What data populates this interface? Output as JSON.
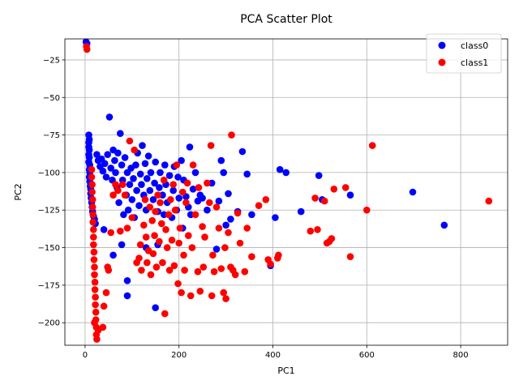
{
  "chart_data": {
    "type": "scatter",
    "title": "PCA Scatter Plot",
    "xlabel": "PC1",
    "ylabel": "PC2",
    "xlim": [
      -43,
      900
    ],
    "ylim": [
      -215,
      -11
    ],
    "xticks": [
      0,
      200,
      400,
      600,
      800
    ],
    "yticks": [
      -200,
      -175,
      -150,
      -125,
      -100,
      -75,
      -50,
      -25
    ],
    "grid": true,
    "legend_position": "top-right",
    "series": [
      {
        "name": "class0",
        "color": "#0000ff",
        "points": [
          [
            2,
            -13
          ],
          [
            4,
            -14
          ],
          [
            8,
            -75
          ],
          [
            9,
            -78
          ],
          [
            8,
            -80
          ],
          [
            8,
            -83
          ],
          [
            9,
            -85
          ],
          [
            8,
            -88
          ],
          [
            9,
            -90
          ],
          [
            8,
            -93
          ],
          [
            10,
            -95
          ],
          [
            9,
            -98
          ],
          [
            10,
            -100
          ],
          [
            9,
            -103
          ],
          [
            10,
            -106
          ],
          [
            11,
            -109
          ],
          [
            12,
            -111
          ],
          [
            12,
            -114
          ],
          [
            13,
            -117
          ],
          [
            14,
            -120
          ],
          [
            15,
            -123
          ],
          [
            16,
            -126
          ],
          [
            18,
            -129
          ],
          [
            20,
            -131
          ],
          [
            22,
            -134
          ],
          [
            25,
            -88
          ],
          [
            28,
            -92
          ],
          [
            32,
            -96
          ],
          [
            35,
            -91
          ],
          [
            38,
            -99
          ],
          [
            42,
            -94
          ],
          [
            45,
            -103
          ],
          [
            48,
            -88
          ],
          [
            52,
            -63
          ],
          [
            55,
            -97
          ],
          [
            58,
            -105
          ],
          [
            60,
            -85
          ],
          [
            63,
            -92
          ],
          [
            65,
            -100
          ],
          [
            68,
            -110
          ],
          [
            70,
            -87
          ],
          [
            72,
            -120
          ],
          [
            75,
            -74
          ],
          [
            78,
            -95
          ],
          [
            80,
            -105
          ],
          [
            82,
            -128
          ],
          [
            85,
            -90
          ],
          [
            88,
            -115
          ],
          [
            90,
            -100
          ],
          [
            92,
            -125
          ],
          [
            95,
            -108
          ],
          [
            98,
            -97
          ],
          [
            100,
            -118
          ],
          [
            103,
            -104
          ],
          [
            105,
            -130
          ],
          [
            108,
            -95
          ],
          [
            110,
            -112
          ],
          [
            112,
            -87
          ],
          [
            115,
            -122
          ],
          [
            118,
            -101
          ],
          [
            120,
            -108
          ],
          [
            122,
            -82
          ],
          [
            125,
            -115
          ],
          [
            128,
            -94
          ],
          [
            130,
            -125
          ],
          [
            132,
            -104
          ],
          [
            135,
            -89
          ],
          [
            138,
            -112
          ],
          [
            140,
            -100
          ],
          [
            145,
            -118
          ],
          [
            148,
            -107
          ],
          [
            150,
            -93
          ],
          [
            155,
            -126
          ],
          [
            158,
            -110
          ],
          [
            160,
            -100
          ],
          [
            165,
            -115
          ],
          [
            168,
            -128
          ],
          [
            170,
            -95
          ],
          [
            172,
            -108
          ],
          [
            175,
            -120
          ],
          [
            180,
            -102
          ],
          [
            185,
            -130
          ],
          [
            188,
            -112
          ],
          [
            190,
            -96
          ],
          [
            195,
            -125
          ],
          [
            198,
            -103
          ],
          [
            200,
            -117
          ],
          [
            205,
            -92
          ],
          [
            208,
            -137
          ],
          [
            210,
            -105
          ],
          [
            215,
            -116
          ],
          [
            220,
            -123
          ],
          [
            223,
            -83
          ],
          [
            225,
            -128
          ],
          [
            230,
            -111
          ],
          [
            235,
            -100
          ],
          [
            240,
            -119
          ],
          [
            245,
            -115
          ],
          [
            250,
            -117
          ],
          [
            260,
            -125
          ],
          [
            270,
            -107
          ],
          [
            280,
            -151
          ],
          [
            285,
            -119
          ],
          [
            290,
            -92
          ],
          [
            295,
            -100
          ],
          [
            300,
            -135
          ],
          [
            305,
            -114
          ],
          [
            310,
            -131
          ],
          [
            325,
            -126
          ],
          [
            335,
            -86
          ],
          [
            345,
            -101
          ],
          [
            355,
            -128
          ],
          [
            395,
            -162
          ],
          [
            405,
            -130
          ],
          [
            415,
            -98
          ],
          [
            428,
            -100
          ],
          [
            460,
            -126
          ],
          [
            498,
            -102
          ],
          [
            505,
            -118
          ],
          [
            565,
            -115
          ],
          [
            698,
            -113
          ],
          [
            765,
            -135
          ],
          [
            90,
            -182
          ],
          [
            90,
            -172
          ],
          [
            78,
            -148
          ],
          [
            40,
            -138
          ],
          [
            60,
            -155
          ],
          [
            150,
            -190
          ],
          [
            130,
            -150
          ],
          [
            155,
            -148
          ]
        ]
      },
      {
        "name": "class1",
        "color": "#ff0000",
        "points": [
          [
            3,
            -16
          ],
          [
            4,
            -18
          ],
          [
            14,
            -98
          ],
          [
            14,
            -103
          ],
          [
            15,
            -108
          ],
          [
            15,
            -113
          ],
          [
            16,
            -118
          ],
          [
            16,
            -123
          ],
          [
            17,
            -128
          ],
          [
            17,
            -133
          ],
          [
            18,
            -138
          ],
          [
            18,
            -143
          ],
          [
            18,
            -148
          ],
          [
            19,
            -153
          ],
          [
            19,
            -158
          ],
          [
            20,
            -163
          ],
          [
            20,
            -168
          ],
          [
            21,
            -173
          ],
          [
            21,
            -178
          ],
          [
            22,
            -183
          ],
          [
            22,
            -188
          ],
          [
            23,
            -193
          ],
          [
            23,
            -198
          ],
          [
            24,
            -203
          ],
          [
            24,
            -208
          ],
          [
            25,
            -211
          ],
          [
            20,
            -200
          ],
          [
            28,
            -205
          ],
          [
            38,
            -203
          ],
          [
            40,
            -189
          ],
          [
            45,
            -180
          ],
          [
            48,
            -163
          ],
          [
            50,
            -165
          ],
          [
            55,
            -140
          ],
          [
            60,
            -115
          ],
          [
            65,
            -108
          ],
          [
            70,
            -112
          ],
          [
            75,
            -139
          ],
          [
            80,
            -108
          ],
          [
            85,
            -115
          ],
          [
            90,
            -137
          ],
          [
            95,
            -79
          ],
          [
            100,
            -130
          ],
          [
            105,
            -85
          ],
          [
            110,
            -160
          ],
          [
            115,
            -157
          ],
          [
            118,
            -148
          ],
          [
            120,
            -165
          ],
          [
            125,
            -135
          ],
          [
            128,
            -118
          ],
          [
            130,
            -143
          ],
          [
            132,
            -160
          ],
          [
            135,
            -152
          ],
          [
            138,
            -123
          ],
          [
            140,
            -168
          ],
          [
            143,
            -132
          ],
          [
            145,
            -154
          ],
          [
            148,
            -142
          ],
          [
            150,
            -126
          ],
          [
            152,
            -163
          ],
          [
            155,
            -115
          ],
          [
            158,
            -146
          ],
          [
            160,
            -120
          ],
          [
            163,
            -134
          ],
          [
            165,
            -160
          ],
          [
            168,
            -105
          ],
          [
            170,
            -194
          ],
          [
            172,
            -138
          ],
          [
            175,
            -150
          ],
          [
            178,
            -128
          ],
          [
            180,
            -165
          ],
          [
            182,
            -118
          ],
          [
            185,
            -145
          ],
          [
            188,
            -108
          ],
          [
            190,
            -162
          ],
          [
            192,
            -125
          ],
          [
            195,
            -95
          ],
          [
            198,
            -174
          ],
          [
            200,
            -147
          ],
          [
            202,
            -137
          ],
          [
            205,
            -180
          ],
          [
            208,
            -113
          ],
          [
            210,
            -155
          ],
          [
            212,
            -165
          ],
          [
            215,
            -120
          ],
          [
            218,
            -107
          ],
          [
            220,
            -142
          ],
          [
            225,
            -182
          ],
          [
            228,
            -150
          ],
          [
            230,
            -95
          ],
          [
            235,
            -128
          ],
          [
            240,
            -166
          ],
          [
            242,
            -110
          ],
          [
            245,
            -179
          ],
          [
            250,
            -136
          ],
          [
            252,
            -163
          ],
          [
            255,
            -143
          ],
          [
            260,
            -107
          ],
          [
            265,
            -120
          ],
          [
            268,
            -82
          ],
          [
            270,
            -182
          ],
          [
            272,
            -155
          ],
          [
            275,
            -166
          ],
          [
            280,
            -123
          ],
          [
            285,
            -137
          ],
          [
            290,
            -164
          ],
          [
            295,
            -180
          ],
          [
            298,
            -150
          ],
          [
            300,
            -184
          ],
          [
            305,
            -140
          ],
          [
            310,
            -163
          ],
          [
            312,
            -75
          ],
          [
            315,
            -165
          ],
          [
            320,
            -168
          ],
          [
            325,
            -127
          ],
          [
            330,
            -147
          ],
          [
            340,
            -166
          ],
          [
            345,
            -137
          ],
          [
            355,
            -156
          ],
          [
            370,
            -122
          ],
          [
            385,
            -118
          ],
          [
            390,
            -158
          ],
          [
            395,
            -161
          ],
          [
            410,
            -157
          ],
          [
            412,
            -155
          ],
          [
            480,
            -139
          ],
          [
            490,
            -117
          ],
          [
            495,
            -138
          ],
          [
            510,
            -119
          ],
          [
            515,
            -147
          ],
          [
            520,
            -146
          ],
          [
            525,
            -144
          ],
          [
            530,
            -111
          ],
          [
            555,
            -110
          ],
          [
            565,
            -156
          ],
          [
            600,
            -125
          ],
          [
            612,
            -82
          ],
          [
            860,
            -119
          ]
        ]
      }
    ]
  }
}
